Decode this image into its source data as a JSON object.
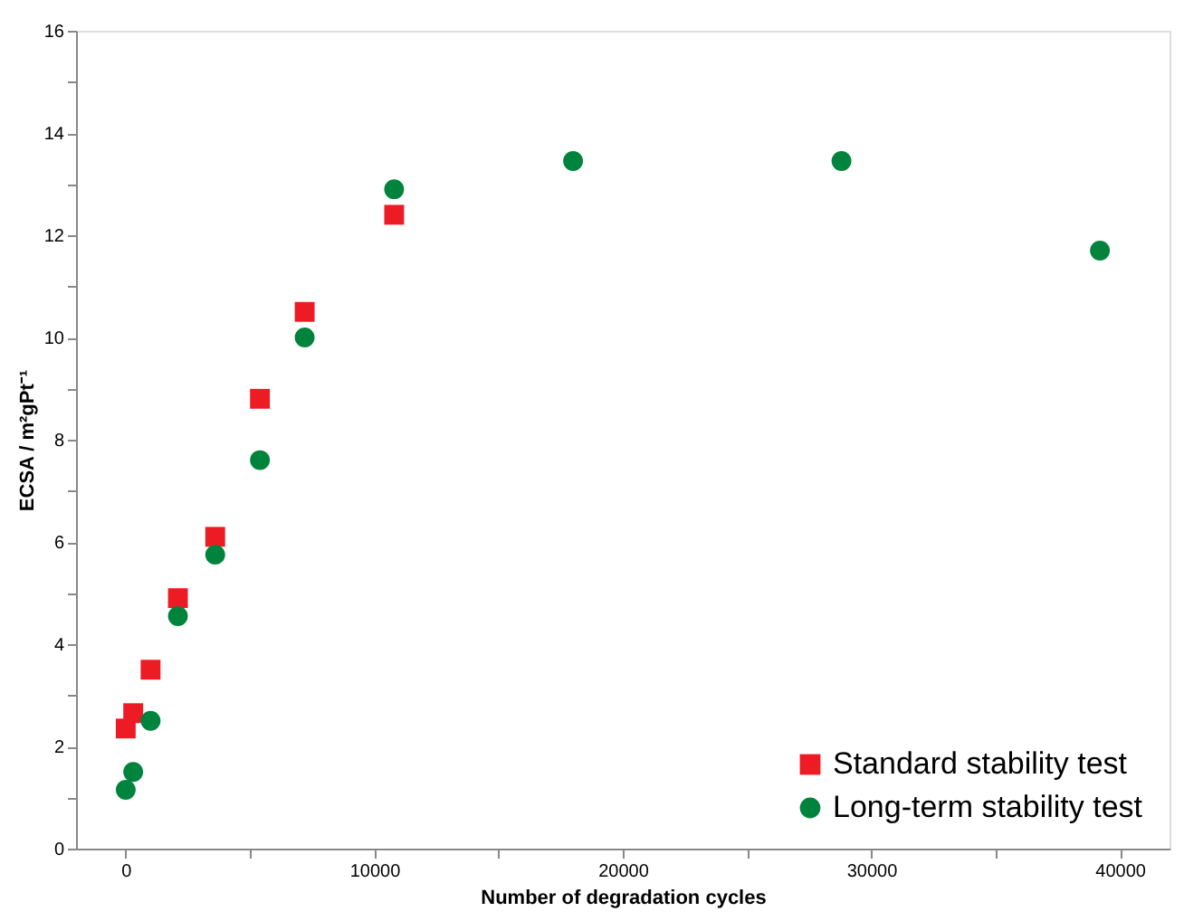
{
  "chart_data": {
    "type": "scatter",
    "xlabel": "Number of degradation cycles",
    "ylabel": "ECSA / m²gPt⁻¹",
    "xlim": [
      -2000,
      42000
    ],
    "ylim": [
      0,
      16
    ],
    "xticks": [
      0,
      {
        "value": 5000,
        "label": null
      },
      10000,
      {
        "value": 15000,
        "label": null
      },
      20000,
      {
        "value": 25000,
        "label": null
      },
      30000,
      {
        "value": 35000,
        "label": null
      },
      40000
    ],
    "yticks": [
      0,
      {
        "value": 1,
        "label": null
      },
      2,
      {
        "value": 3,
        "label": null
      },
      4,
      {
        "value": 5,
        "label": null
      },
      6,
      {
        "value": 7,
        "label": null
      },
      8,
      {
        "value": 9,
        "label": null
      },
      10,
      {
        "value": 11,
        "label": null
      },
      12,
      {
        "value": 13,
        "label": null
      },
      14,
      {
        "value": 15,
        "label": null
      },
      16
    ],
    "grid": false,
    "legend": "bottom right",
    "series": [
      {
        "name": "Standard stability test",
        "color": "#ed1c24",
        "marker": "square",
        "x": [
          0,
          300,
          1000,
          2100,
          3600,
          5400,
          7200,
          10800
        ],
        "values": [
          2.35,
          2.65,
          3.5,
          4.9,
          6.1,
          8.8,
          10.5,
          12.4
        ]
      },
      {
        "name": "Long-term stability test",
        "color": "#00843d",
        "marker": "circle",
        "x": [
          0,
          300,
          1000,
          2100,
          3600,
          5400,
          7200,
          10800,
          18000,
          28800,
          39200
        ],
        "values": [
          1.15,
          1.5,
          2.5,
          4.55,
          5.75,
          7.6,
          10.0,
          12.9,
          13.45,
          13.45,
          11.7
        ]
      }
    ]
  }
}
